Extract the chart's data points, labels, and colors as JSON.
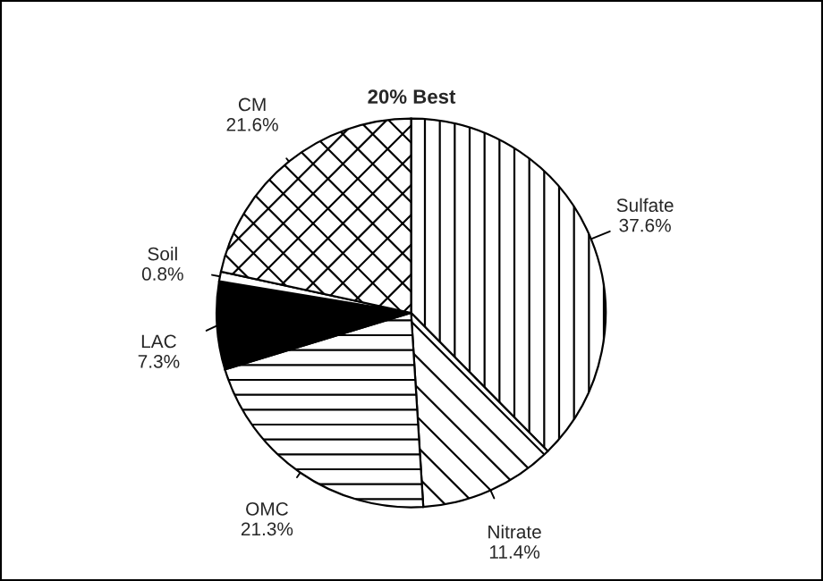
{
  "chart_data": {
    "type": "pie",
    "title": "20% Best",
    "categories": [
      "Sulfate",
      "Nitrate",
      "OMC",
      "LAC",
      "Soil",
      "CM"
    ],
    "values": [
      37.6,
      11.4,
      21.3,
      7.3,
      0.8,
      21.6
    ],
    "value_labels": [
      "37.6%",
      "11.4%",
      "21.3%",
      "7.3%",
      "0.8%",
      "21.6%"
    ],
    "colors": [
      "#ffffff",
      "#ffffff",
      "#ffffff",
      "#000000",
      "#ffffff",
      "#ffffff"
    ],
    "legend": false
  }
}
